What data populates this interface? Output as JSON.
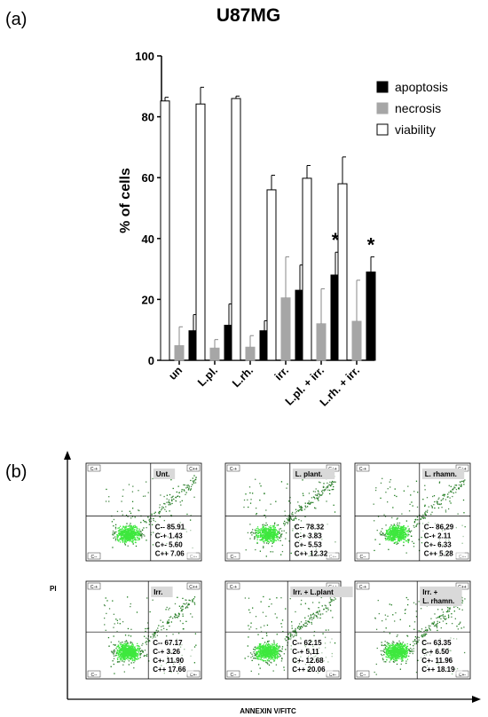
{
  "panel_a": {
    "label": "(a)",
    "chart_data": {
      "type": "bar",
      "title": "U87MG",
      "ylabel": "% of cells",
      "xlabel": "",
      "ylim": [
        0,
        100
      ],
      "yticks": [
        "0",
        "20",
        "40",
        "60",
        "80",
        "100"
      ],
      "categories": [
        "un",
        "L.pl.",
        "L.rh.",
        "irr.",
        "L.pl. + irr.",
        "L.rh. + irr."
      ],
      "series": [
        {
          "name": "viability",
          "color": "#ffffff",
          "values": [
            85.2,
            84.2,
            86.0,
            56.0,
            59.8,
            58.0
          ],
          "errors": [
            1.2,
            5.5,
            0.8,
            4.8,
            4.2,
            8.8
          ]
        },
        {
          "name": "necrosis",
          "color": "#a6a6a6",
          "values": [
            4.8,
            4.0,
            4.3,
            20.5,
            12.0,
            12.8
          ],
          "errors": [
            6.2,
            2.8,
            3.8,
            13.5,
            11.5,
            13.5
          ]
        },
        {
          "name": "apoptosis",
          "color": "#000000",
          "values": [
            9.7,
            11.5,
            9.7,
            23.0,
            28.0,
            29.0
          ],
          "errors": [
            5.3,
            7.0,
            3.3,
            8.3,
            7.5,
            5.0
          ]
        }
      ],
      "legend_order": [
        "apoptosis",
        "necrosis",
        "viability"
      ],
      "legend_position": "top-right",
      "significance": [
        {
          "category": "L.pl. + irr.",
          "label": "*"
        },
        {
          "category": "L.rh. + irr.",
          "label": "*"
        }
      ]
    }
  },
  "panel_b": {
    "label": "(b)",
    "y_axis_label": "PI",
    "x_axis_label": "ANNEXIN V/FITC",
    "quadrant_tags": [
      "C-+",
      "C++",
      "C--",
      "C+-"
    ],
    "dot_color": "#3ee83e",
    "plots": [
      {
        "name": "Unt.",
        "name2": "",
        "stats": [
          "C-- 85.91",
          "C-+ 1.43",
          "C+- 5.60",
          "C++ 7.06"
        ]
      },
      {
        "name": "L. plant.",
        "name2": "",
        "stats": [
          "C-- 78.32",
          "C-+ 3.83",
          "C+- 5.53",
          "C++ 12.32"
        ]
      },
      {
        "name": "L. rhamn.",
        "name2": "",
        "stats": [
          "C-- 86,29",
          "C-+ 2.11",
          "C+- 6.33",
          "C++ 5.28"
        ]
      },
      {
        "name": "Irr.",
        "name2": "",
        "stats": [
          "C-- 67.17",
          "C-+ 3.26",
          "C+- 11.90",
          "C++ 17.66"
        ]
      },
      {
        "name": "Irr. + L.plant",
        "name2": "",
        "stats": [
          "C-- 62.15",
          "C-+ 5,11",
          "C+- 12.68",
          "C++ 20.06"
        ]
      },
      {
        "name": "Irr. +",
        "name2": "L. rhamn.",
        "stats": [
          "C-- 63.35",
          "C-+ 6.50",
          "C+- 11.96",
          "C++ 18.19"
        ]
      }
    ]
  }
}
